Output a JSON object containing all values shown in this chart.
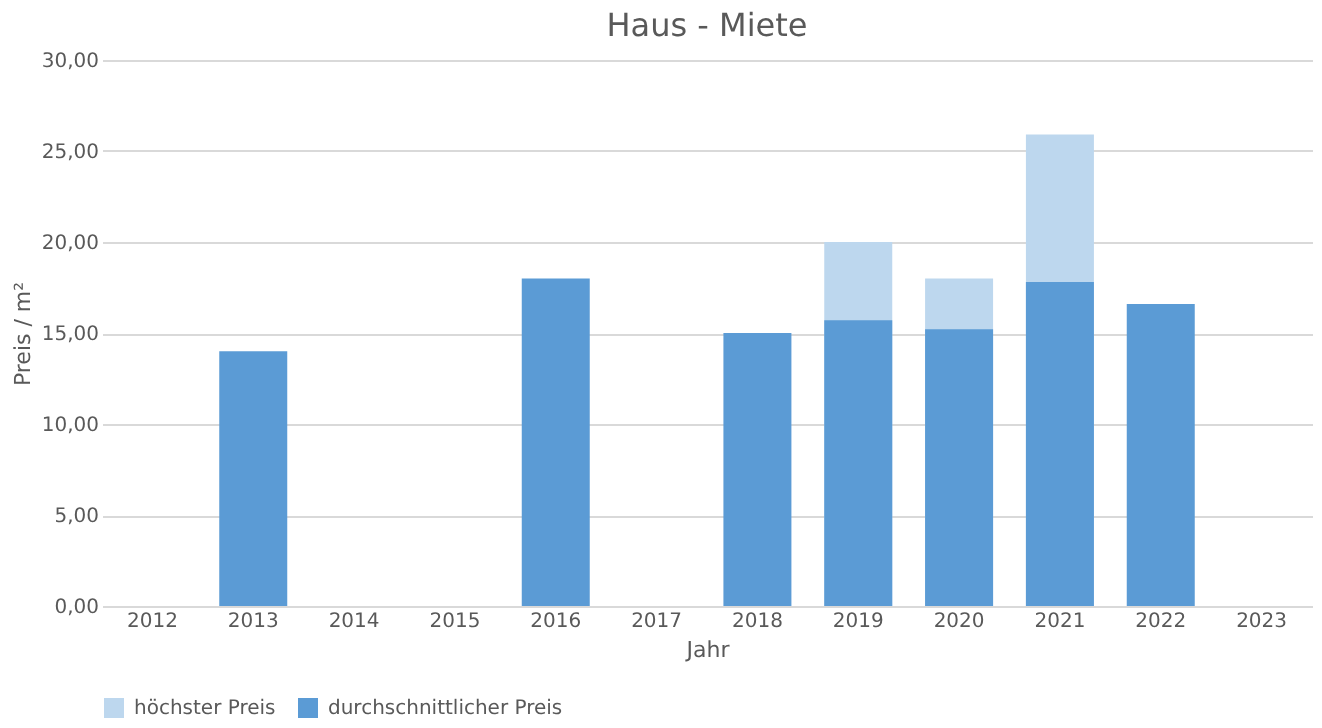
{
  "chart_data": {
    "type": "bar",
    "title": "Haus - Miete",
    "xlabel": "Jahr",
    "ylabel": "Preis / m²",
    "categories": [
      "2012",
      "2013",
      "2014",
      "2015",
      "2016",
      "2017",
      "2018",
      "2019",
      "2020",
      "2021",
      "2022",
      "2023"
    ],
    "series": [
      {
        "name": "höchster Preis",
        "color": "#bdd7ee",
        "values": [
          null,
          null,
          null,
          null,
          null,
          null,
          null,
          20,
          18,
          25.9,
          null,
          null
        ]
      },
      {
        "name": "durchschnittlicher Preis",
        "color": "#5b9bd5",
        "values": [
          null,
          14,
          null,
          null,
          18,
          null,
          15,
          15.7,
          15.2,
          17.8,
          16.6,
          null
        ]
      }
    ],
    "ylim": [
      0,
      30
    ],
    "yticks": [
      {
        "value": 0,
        "label": "0,00"
      },
      {
        "value": 5,
        "label": "5,00"
      },
      {
        "value": 10,
        "label": "10,00"
      },
      {
        "value": 15,
        "label": "15,00"
      },
      {
        "value": 20,
        "label": "20,00"
      },
      {
        "value": 25,
        "label": "25,00"
      },
      {
        "value": 30,
        "label": "30,00"
      }
    ],
    "grid": "y",
    "legend": "bottom"
  }
}
